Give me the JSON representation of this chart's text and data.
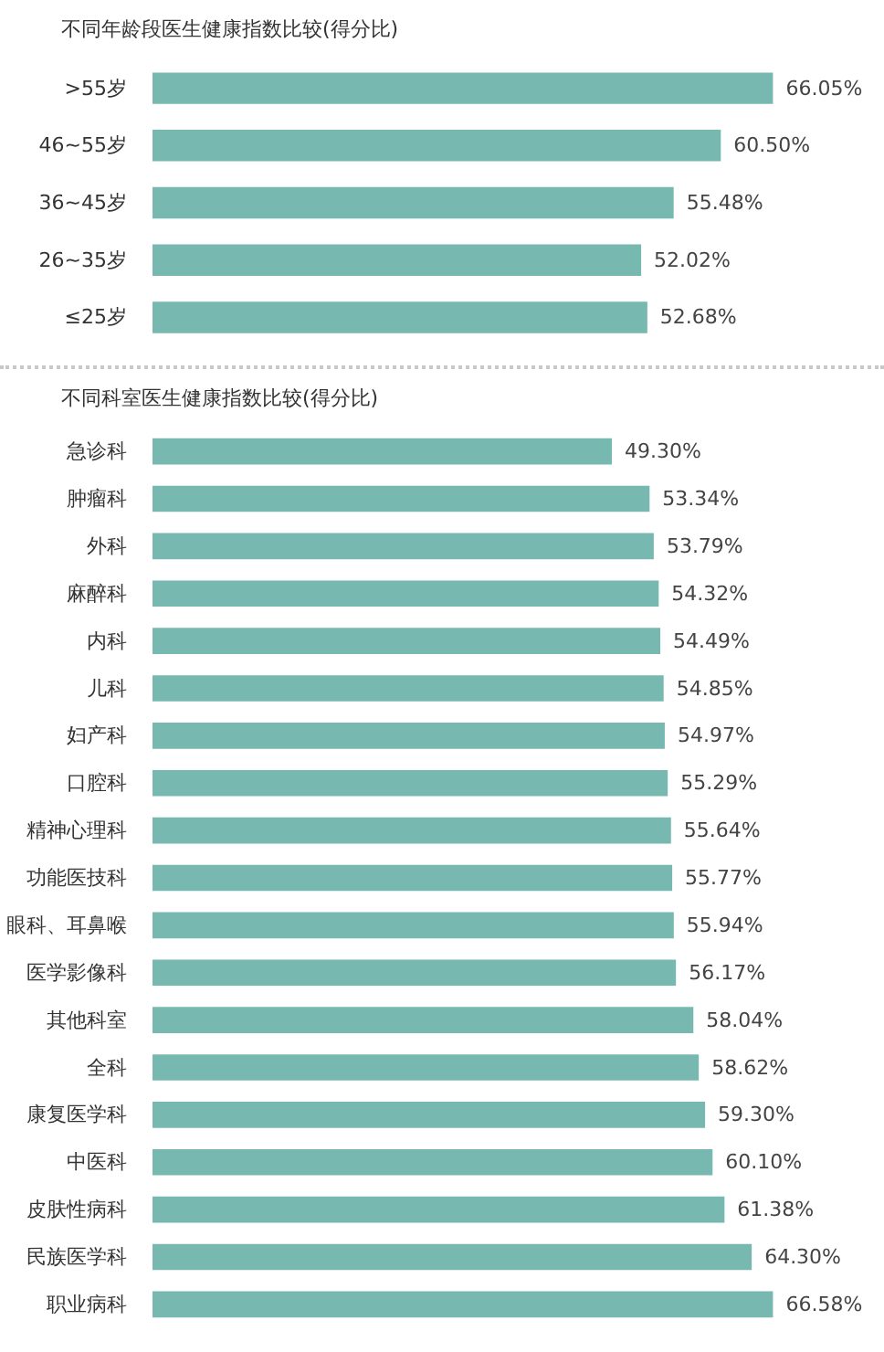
{
  "chart_data": [
    {
      "type": "bar",
      "orientation": "horizontal",
      "title": "不同年龄段医生健康指数比较(得分比)",
      "categories": [
        ">55岁",
        "46~55岁",
        "36~45岁",
        "26~35岁",
        "≤25岁"
      ],
      "values": [
        66.05,
        60.5,
        55.48,
        52.02,
        52.68
      ],
      "value_labels": [
        "66.05%",
        "60.50%",
        "55.48%",
        "52.02%",
        "52.68%"
      ],
      "color": "#77b9b1",
      "tick_labels": "y",
      "grid": false
    },
    {
      "type": "bar",
      "orientation": "horizontal",
      "title": "不同科室医生健康指数比较(得分比)",
      "categories": [
        "急诊科",
        "肿瘤科",
        "外科",
        "麻醉科",
        "内科",
        "儿科",
        "妇产科",
        "口腔科",
        "精神心理科",
        "功能医技科",
        "眼科、耳鼻喉",
        "医学影像科",
        "其他科室",
        "全科",
        "康复医学科",
        "中医科",
        "皮肤性病科",
        "民族医学科",
        "职业病科"
      ],
      "values": [
        49.3,
        53.34,
        53.79,
        54.32,
        54.49,
        54.85,
        54.97,
        55.29,
        55.64,
        55.77,
        55.94,
        56.17,
        58.04,
        58.62,
        59.3,
        60.1,
        61.38,
        64.3,
        66.58
      ],
      "value_labels": [
        "49.30%",
        "53.34%",
        "53.79%",
        "54.32%",
        "54.49%",
        "54.85%",
        "54.97%",
        "55.29%",
        "55.64%",
        "55.77%",
        "55.94%",
        "56.17%",
        "58.04%",
        "58.62%",
        "59.30%",
        "60.10%",
        "61.38%",
        "64.30%",
        "66.58%"
      ],
      "color": "#77b9b1",
      "tick_labels": "y",
      "grid": false
    }
  ]
}
